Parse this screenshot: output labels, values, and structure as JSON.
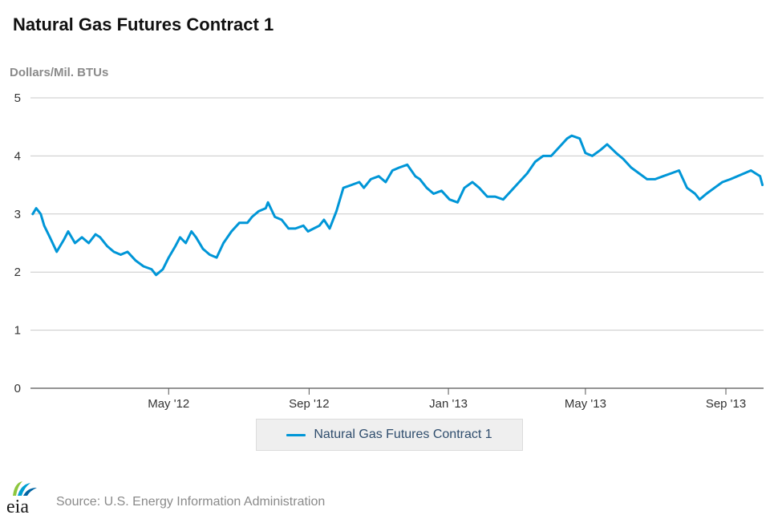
{
  "header": {
    "title": "Natural Gas Futures Contract 1"
  },
  "footer": {
    "source": "Source: U.S. Energy Information Administration"
  },
  "logo": {
    "text": "eia",
    "colors": [
      "#8dc63f",
      "#00a0d2",
      "#0065a4"
    ]
  },
  "chart_data": {
    "type": "line",
    "title": "Natural Gas Futures Contract 1",
    "ylabel": "Dollars/Mil. BTUs",
    "xlabel": "",
    "ylim": [
      0,
      5
    ],
    "yticks": [
      0,
      1,
      2,
      3,
      4,
      5
    ],
    "xlim": [
      "2012-01-01",
      "2013-10-04"
    ],
    "xticks": [
      {
        "date": "2012-05-01",
        "label": "May '12"
      },
      {
        "date": "2012-09-01",
        "label": "Sep '12"
      },
      {
        "date": "2013-01-01",
        "label": "Jan '13"
      },
      {
        "date": "2013-05-01",
        "label": "May '13"
      },
      {
        "date": "2013-09-01",
        "label": "Sep '13"
      }
    ],
    "grid": true,
    "legend": "bottom-center",
    "line_color": "#0096d7",
    "series": [
      {
        "name": "Natural Gas Futures Contract 1",
        "points": [
          [
            "2012-01-03",
            3.0
          ],
          [
            "2012-01-06",
            3.1
          ],
          [
            "2012-01-10",
            3.0
          ],
          [
            "2012-01-13",
            2.8
          ],
          [
            "2012-01-18",
            2.6
          ],
          [
            "2012-01-24",
            2.35
          ],
          [
            "2012-01-30",
            2.55
          ],
          [
            "2012-02-03",
            2.7
          ],
          [
            "2012-02-09",
            2.5
          ],
          [
            "2012-02-15",
            2.6
          ],
          [
            "2012-02-21",
            2.5
          ],
          [
            "2012-02-27",
            2.65
          ],
          [
            "2012-03-02",
            2.6
          ],
          [
            "2012-03-08",
            2.45
          ],
          [
            "2012-03-14",
            2.35
          ],
          [
            "2012-03-20",
            2.3
          ],
          [
            "2012-03-26",
            2.35
          ],
          [
            "2012-04-02",
            2.2
          ],
          [
            "2012-04-09",
            2.1
          ],
          [
            "2012-04-16",
            2.05
          ],
          [
            "2012-04-20",
            1.95
          ],
          [
            "2012-04-26",
            2.05
          ],
          [
            "2012-05-01",
            2.25
          ],
          [
            "2012-05-07",
            2.45
          ],
          [
            "2012-05-11",
            2.6
          ],
          [
            "2012-05-16",
            2.5
          ],
          [
            "2012-05-21",
            2.7
          ],
          [
            "2012-05-25",
            2.6
          ],
          [
            "2012-05-31",
            2.4
          ],
          [
            "2012-06-06",
            2.3
          ],
          [
            "2012-06-12",
            2.25
          ],
          [
            "2012-06-18",
            2.5
          ],
          [
            "2012-06-25",
            2.7
          ],
          [
            "2012-07-02",
            2.85
          ],
          [
            "2012-07-09",
            2.85
          ],
          [
            "2012-07-13",
            2.95
          ],
          [
            "2012-07-19",
            3.05
          ],
          [
            "2012-07-25",
            3.1
          ],
          [
            "2012-07-27",
            3.2
          ],
          [
            "2012-08-02",
            2.95
          ],
          [
            "2012-08-08",
            2.9
          ],
          [
            "2012-08-14",
            2.75
          ],
          [
            "2012-08-20",
            2.75
          ],
          [
            "2012-08-27",
            2.8
          ],
          [
            "2012-08-31",
            2.7
          ],
          [
            "2012-09-05",
            2.75
          ],
          [
            "2012-09-10",
            2.8
          ],
          [
            "2012-09-14",
            2.9
          ],
          [
            "2012-09-19",
            2.75
          ],
          [
            "2012-09-25",
            3.05
          ],
          [
            "2012-10-01",
            3.45
          ],
          [
            "2012-10-08",
            3.5
          ],
          [
            "2012-10-15",
            3.55
          ],
          [
            "2012-10-19",
            3.45
          ],
          [
            "2012-10-25",
            3.6
          ],
          [
            "2012-11-01",
            3.65
          ],
          [
            "2012-11-07",
            3.55
          ],
          [
            "2012-11-13",
            3.75
          ],
          [
            "2012-11-19",
            3.8
          ],
          [
            "2012-11-26",
            3.85
          ],
          [
            "2012-12-03",
            3.65
          ],
          [
            "2012-12-07",
            3.6
          ],
          [
            "2012-12-13",
            3.45
          ],
          [
            "2012-12-19",
            3.35
          ],
          [
            "2012-12-26",
            3.4
          ],
          [
            "2013-01-02",
            3.25
          ],
          [
            "2013-01-09",
            3.2
          ],
          [
            "2013-01-15",
            3.45
          ],
          [
            "2013-01-22",
            3.55
          ],
          [
            "2013-01-28",
            3.45
          ],
          [
            "2013-02-04",
            3.3
          ],
          [
            "2013-02-11",
            3.3
          ],
          [
            "2013-02-18",
            3.25
          ],
          [
            "2013-02-25",
            3.4
          ],
          [
            "2013-03-04",
            3.55
          ],
          [
            "2013-03-11",
            3.7
          ],
          [
            "2013-03-18",
            3.9
          ],
          [
            "2013-03-25",
            4.0
          ],
          [
            "2013-04-01",
            4.0
          ],
          [
            "2013-04-08",
            4.15
          ],
          [
            "2013-04-15",
            4.3
          ],
          [
            "2013-04-19",
            4.35
          ],
          [
            "2013-04-26",
            4.3
          ],
          [
            "2013-05-01",
            4.05
          ],
          [
            "2013-05-07",
            4.0
          ],
          [
            "2013-05-14",
            4.1
          ],
          [
            "2013-05-20",
            4.2
          ],
          [
            "2013-05-28",
            4.05
          ],
          [
            "2013-06-03",
            3.95
          ],
          [
            "2013-06-10",
            3.8
          ],
          [
            "2013-06-17",
            3.7
          ],
          [
            "2013-06-24",
            3.6
          ],
          [
            "2013-07-01",
            3.6
          ],
          [
            "2013-07-08",
            3.65
          ],
          [
            "2013-07-15",
            3.7
          ],
          [
            "2013-07-22",
            3.75
          ],
          [
            "2013-07-29",
            3.45
          ],
          [
            "2013-08-05",
            3.35
          ],
          [
            "2013-08-09",
            3.25
          ],
          [
            "2013-08-15",
            3.35
          ],
          [
            "2013-08-22",
            3.45
          ],
          [
            "2013-08-29",
            3.55
          ],
          [
            "2013-09-05",
            3.6
          ],
          [
            "2013-09-11",
            3.65
          ],
          [
            "2013-09-17",
            3.7
          ],
          [
            "2013-09-23",
            3.75
          ],
          [
            "2013-09-27",
            3.7
          ],
          [
            "2013-10-01",
            3.65
          ],
          [
            "2013-10-03",
            3.5
          ]
        ]
      }
    ]
  }
}
